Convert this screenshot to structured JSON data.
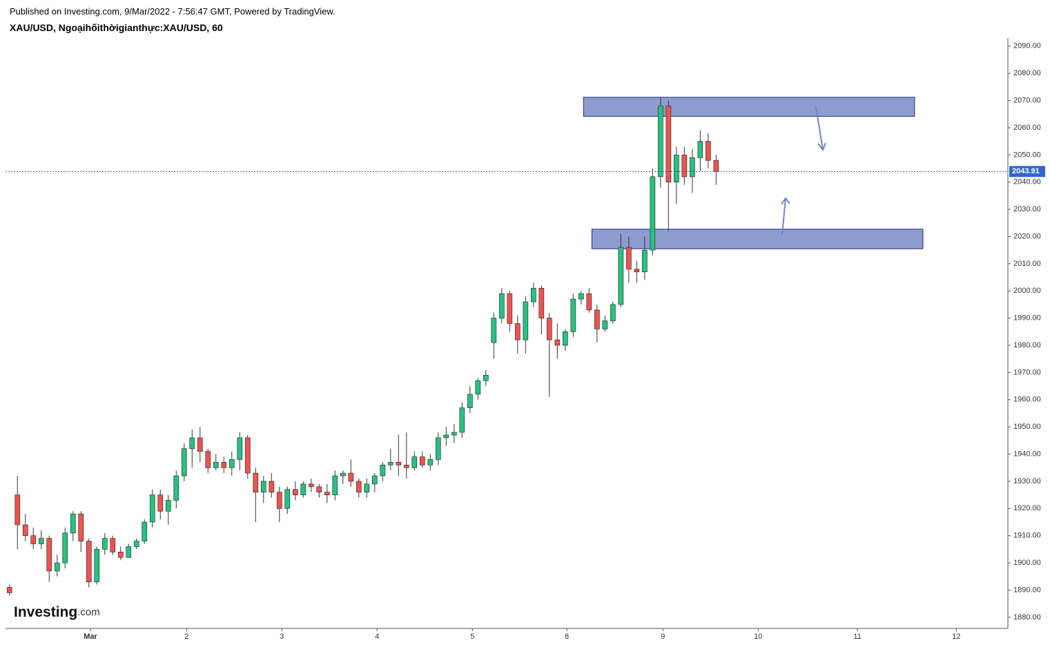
{
  "header": {
    "published": "Published on Investing.com, 9/Mar/2022 - 7:56:47 GMT, Powered by TradingView.",
    "symbol": "XAU/USD, Ngoạihốithờigianthực:XAU/USD, 60"
  },
  "logo": {
    "brand": "Investing",
    "suffix": ".com"
  },
  "chart_data": {
    "type": "candlestick",
    "x": [
      1,
      3,
      5,
      7,
      9,
      11,
      13,
      15,
      17,
      19,
      21,
      23,
      25,
      27,
      29,
      31,
      33,
      35,
      37,
      39,
      41,
      43,
      45,
      47,
      49,
      51,
      53,
      55,
      57,
      59,
      61,
      63,
      65,
      67,
      69,
      71,
      73,
      75,
      77,
      79,
      81,
      83,
      85,
      87,
      89,
      91,
      93,
      95,
      97,
      99,
      101,
      103,
      105,
      107,
      109,
      111,
      113,
      115,
      117,
      119,
      121,
      123,
      125,
      127,
      129,
      131,
      133,
      135,
      137,
      139,
      141,
      143,
      145,
      147,
      149,
      151,
      153,
      155,
      157,
      159,
      161,
      163,
      165,
      167,
      169,
      171,
      173,
      175,
      177,
      179
    ],
    "open": [
      1891,
      1925,
      1914,
      1910,
      1907,
      1909,
      1897,
      1900,
      1911,
      1918,
      1908,
      1893,
      1905,
      1909,
      1904,
      1902,
      1906,
      1908,
      1915,
      1925,
      1919,
      1923,
      1932,
      1942,
      1946,
      1941,
      1935,
      1937,
      1935,
      1938,
      1946,
      1933,
      1926,
      1930,
      1926,
      1920,
      1927,
      1925,
      1929,
      1928,
      1926,
      1925,
      1932,
      1933,
      1930,
      1926,
      1929,
      1932,
      1936,
      1937,
      1936,
      1935,
      1939,
      1936,
      1938,
      1946,
      1947,
      1948,
      1957,
      1962,
      1967,
      1981,
      1990,
      1999,
      1988,
      1982,
      1996,
      2001,
      1990,
      1982,
      1980,
      1985,
      1997,
      1999,
      1993,
      1986,
      1989,
      1995,
      2016,
      2008,
      2007,
      2015,
      2042,
      2068,
      2040,
      2050,
      2042,
      2049,
      2055,
      2048
    ],
    "high": [
      1892,
      1932,
      1918,
      1913,
      1912,
      1910,
      1903,
      1913,
      1919,
      1919,
      1909,
      1906,
      1911,
      1910,
      1906,
      1907,
      1909,
      1916,
      1927,
      1927,
      1925,
      1934,
      1944,
      1949,
      1950,
      1942,
      1940,
      1939,
      1941,
      1948,
      1947,
      1935,
      1932,
      1933,
      1928,
      1928,
      1930,
      1930,
      1931,
      1929,
      1929,
      1934,
      1934,
      1938,
      1931,
      1931,
      1933,
      1937,
      1942,
      1947,
      1948,
      1941,
      1941,
      1940,
      1948,
      1950,
      1951,
      1959,
      1965,
      1968,
      1971,
      1992,
      2001,
      2000,
      1991,
      1998,
      2003,
      2002,
      1992,
      1988,
      1986,
      1999,
      2000,
      2001,
      1995,
      1991,
      1996,
      2021,
      2020,
      2011,
      2020,
      2045,
      2071,
      2070,
      2053,
      2053,
      2052,
      2059,
      2058,
      2050
    ],
    "low": [
      1888,
      1905,
      1908,
      1905,
      1905,
      1893,
      1895,
      1898,
      1908,
      1904,
      1891,
      1892,
      1903,
      1903,
      1901,
      1902,
      1905,
      1907,
      1913,
      1916,
      1914,
      1920,
      1930,
      1935,
      1937,
      1933,
      1934,
      1933,
      1932,
      1934,
      1931,
      1915,
      1922,
      1924,
      1915,
      1918,
      1923,
      1924,
      1926,
      1924,
      1922,
      1923,
      1929,
      1928,
      1924,
      1924,
      1926,
      1930,
      1934,
      1932,
      1931,
      1934,
      1935,
      1934,
      1936,
      1943,
      1944,
      1946,
      1955,
      1960,
      1965,
      1975,
      1988,
      1985,
      1977,
      1977,
      1994,
      1984,
      1961,
      1975,
      1978,
      1983,
      1995,
      1992,
      1981,
      1985,
      1988,
      1994,
      2003,
      2003,
      2004,
      2013,
      2038,
      2022,
      2032,
      2039,
      2036,
      2044,
      2045,
      2039
    ],
    "close": [
      1889,
      1914,
      1910,
      1907,
      1909,
      1897,
      1900,
      1911,
      1918,
      1908,
      1893,
      1905,
      1909,
      1904,
      1902,
      1906,
      1908,
      1915,
      1925,
      1919,
      1923,
      1932,
      1942,
      1946,
      1941,
      1935,
      1937,
      1935,
      1938,
      1946,
      1933,
      1926,
      1930,
      1926,
      1920,
      1927,
      1925,
      1929,
      1928,
      1926,
      1925,
      1932,
      1933,
      1930,
      1926,
      1929,
      1932,
      1936,
      1937,
      1936,
      1935,
      1939,
      1936,
      1938,
      1946,
      1947,
      1948,
      1957,
      1962,
      1967,
      1969,
      1990,
      1999,
      1988,
      1982,
      1996,
      2001,
      1990,
      1982,
      1980,
      1985,
      1997,
      1999,
      1993,
      1986,
      1989,
      1995,
      2016,
      2008,
      2007,
      2015,
      2042,
      2068,
      2040,
      2050,
      2042,
      2049,
      2055,
      2048,
      2043.91
    ],
    "up_color": "#26c281",
    "down_color": "#ef5350",
    "last_price": {
      "value": 2043.91,
      "label": "2043.91"
    },
    "zones": [
      {
        "x": [
          145.6,
          229.0
        ],
        "y": [
          2064.2,
          2071.2
        ]
      },
      {
        "x": [
          147.7,
          231.1
        ],
        "y": [
          2015.5,
          2022.7
        ]
      }
    ],
    "zone_color": "#8c9ccf",
    "xlim": [
      0,
      252.5
    ],
    "xticks": [
      {
        "value": 21.4,
        "label": "Mar"
      },
      {
        "value": 45.6,
        "label": "2"
      },
      {
        "value": 69.6,
        "label": "3"
      },
      {
        "value": 93.6,
        "label": "4"
      },
      {
        "value": 117.6,
        "label": "5"
      },
      {
        "value": 141.4,
        "label": "8"
      },
      {
        "value": 165.6,
        "label": "9"
      },
      {
        "value": 189.6,
        "label": "10"
      },
      {
        "value": 214.6,
        "label": "11"
      },
      {
        "value": 239.5,
        "label": "12"
      }
    ],
    "ylim": [
      1875.9,
      2093.0
    ],
    "yticks": [
      {
        "value": 1880,
        "label": "1880.00"
      },
      {
        "value": 1890,
        "label": "1890.00"
      },
      {
        "value": 1900,
        "label": "1900.00"
      },
      {
        "value": 1910,
        "label": "1910.00"
      },
      {
        "value": 1920,
        "label": "1920.00"
      },
      {
        "value": 1930,
        "label": "1930.00"
      },
      {
        "value": 1940,
        "label": "1940.00"
      },
      {
        "value": 1950,
        "label": "1950.00"
      },
      {
        "value": 1960,
        "label": "1960.00"
      },
      {
        "value": 1970,
        "label": "1970.00"
      },
      {
        "value": 1980,
        "label": "1980.00"
      },
      {
        "value": 1990,
        "label": "1990.00"
      },
      {
        "value": 2000,
        "label": "2000.00"
      },
      {
        "value": 2010,
        "label": "2010.00"
      },
      {
        "value": 2020,
        "label": "2020.00"
      },
      {
        "value": 2030,
        "label": "2030.00"
      },
      {
        "value": 2040,
        "label": "2040.00"
      },
      {
        "value": 2050,
        "label": "2050.00"
      },
      {
        "value": 2060,
        "label": "2060.00"
      },
      {
        "value": 2070,
        "label": "2070.00"
      },
      {
        "value": 2080,
        "label": "2080.00"
      },
      {
        "value": 2090,
        "label": "2090.00"
      }
    ],
    "grid": false
  }
}
